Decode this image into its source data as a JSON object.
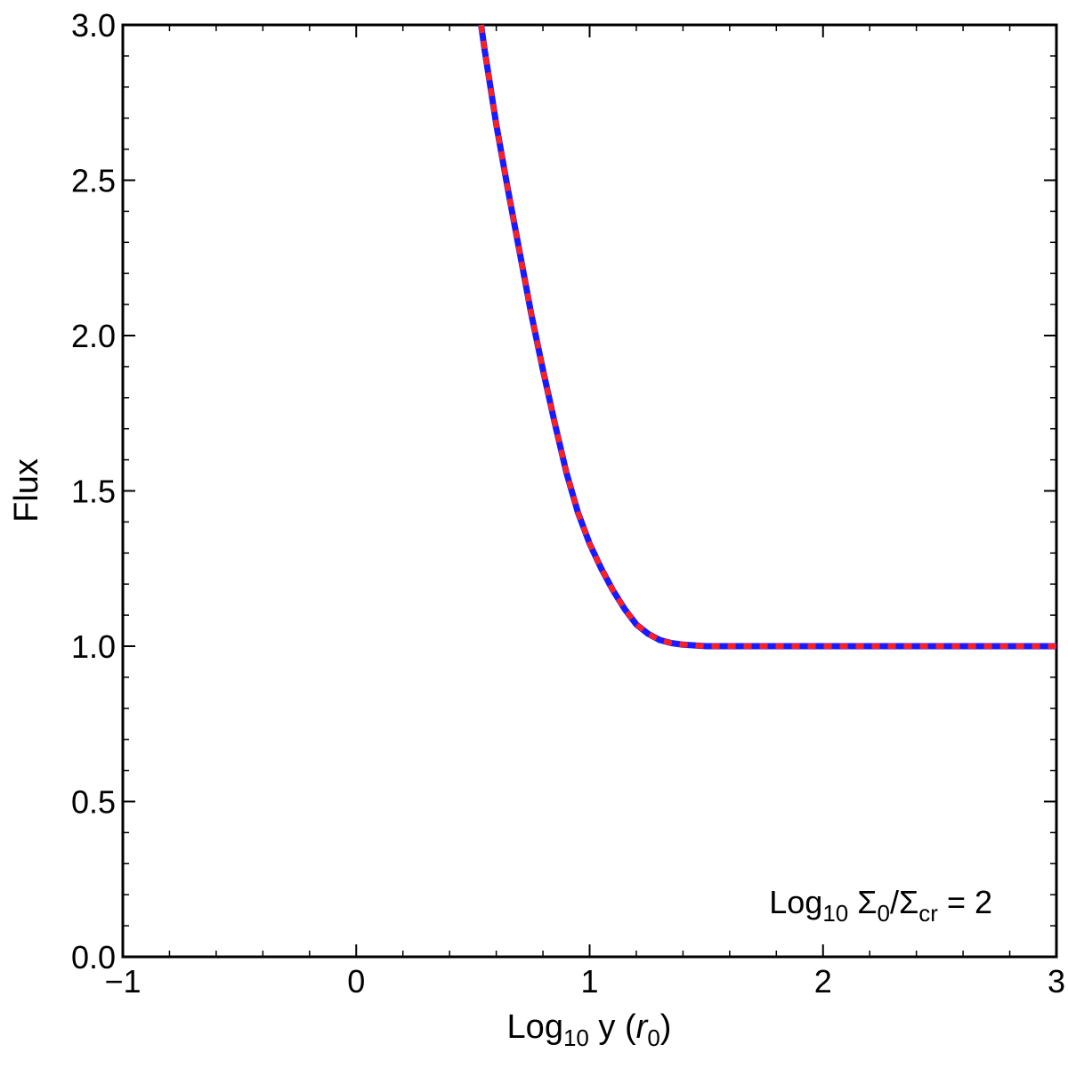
{
  "chart_data": {
    "type": "line",
    "xlabel": {
      "main": "Log",
      "sub": "10",
      "rest": " y (",
      "italic": "r",
      "italic_sub": "0",
      "close": ")"
    },
    "ylabel": "Flux",
    "xlim": [
      -1,
      3
    ],
    "ylim": [
      0,
      3
    ],
    "x_ticks": [
      "−1",
      "0",
      "1",
      "2",
      "3"
    ],
    "x_tick_values": [
      -1,
      0,
      1,
      2,
      3
    ],
    "y_ticks": [
      "0.0",
      "0.5",
      "1.0",
      "1.5",
      "2.0",
      "2.5",
      "3.0"
    ],
    "y_tick_values": [
      0,
      0.5,
      1.0,
      1.5,
      2.0,
      2.5,
      3.0
    ],
    "grid": false,
    "annotation": {
      "pre": "Log",
      "pre_sub": "10",
      "sigma0": " Σ",
      "sigma0_sub": "0",
      "slash": "/Σ",
      "sigmacr_sub": "cr",
      "tail": " = 2"
    },
    "series": [
      {
        "color": "#1a1aff",
        "style": "solid",
        "x": [
          0.535,
          0.55,
          0.6,
          0.65,
          0.7,
          0.75,
          0.8,
          0.85,
          0.9,
          0.95,
          1.0,
          1.05,
          1.1,
          1.15,
          1.2,
          1.25,
          1.3,
          1.35,
          1.4,
          1.5,
          1.6,
          1.7,
          1.8,
          2.0,
          2.5,
          3.0
        ],
        "y": [
          3.0,
          2.92,
          2.68,
          2.47,
          2.27,
          2.07,
          1.89,
          1.72,
          1.56,
          1.43,
          1.33,
          1.25,
          1.18,
          1.12,
          1.07,
          1.04,
          1.02,
          1.01,
          1.005,
          1.0,
          1.0,
          1.0,
          1.0,
          1.0,
          1.0,
          1.0
        ]
      },
      {
        "color": "#ff2020",
        "style": "dashed",
        "x": [
          0.535,
          0.55,
          0.6,
          0.65,
          0.7,
          0.75,
          0.8,
          0.85,
          0.9,
          0.95,
          1.0,
          1.05,
          1.1,
          1.15,
          1.2,
          1.25,
          1.3,
          1.35,
          1.4,
          1.5,
          1.6,
          1.7,
          1.8,
          2.0,
          2.5,
          3.0
        ],
        "y": [
          3.0,
          2.92,
          2.68,
          2.47,
          2.27,
          2.07,
          1.89,
          1.72,
          1.56,
          1.43,
          1.33,
          1.25,
          1.18,
          1.12,
          1.07,
          1.04,
          1.02,
          1.01,
          1.005,
          1.0,
          1.0,
          1.0,
          1.0,
          1.0,
          1.0,
          1.0
        ]
      }
    ]
  }
}
